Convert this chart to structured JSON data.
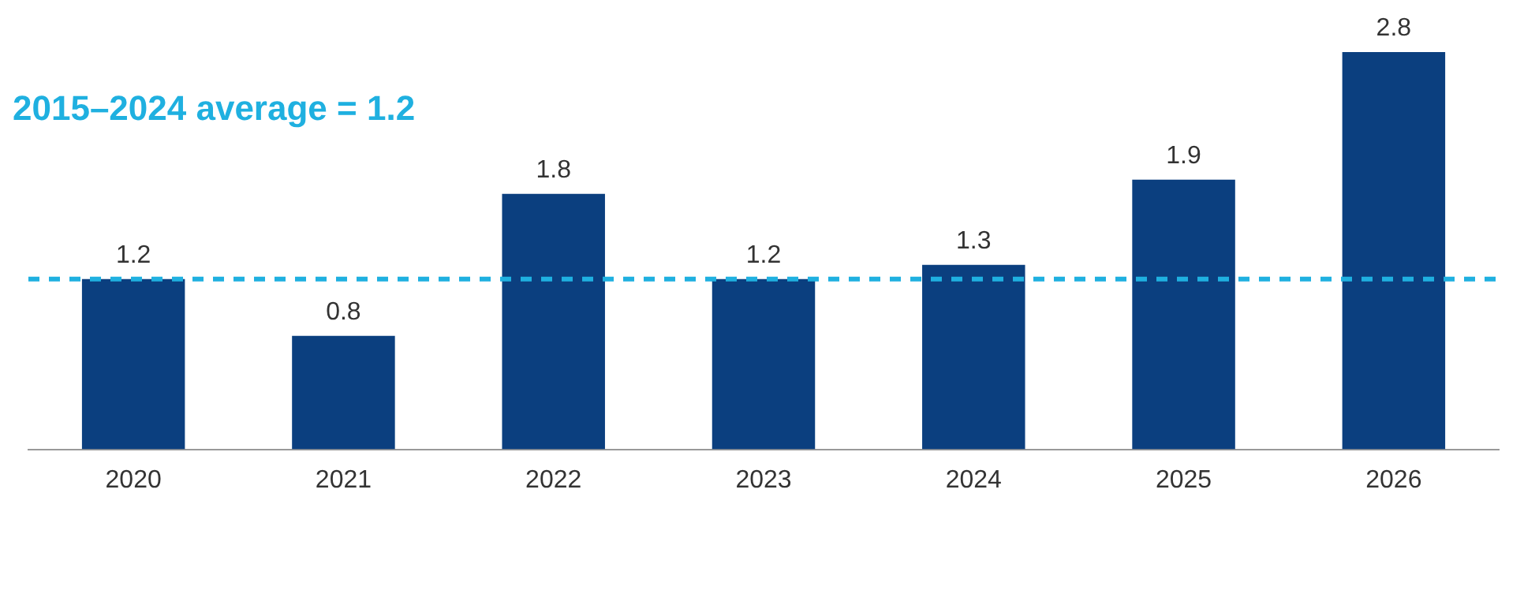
{
  "chart_data": {
    "type": "bar",
    "categories": [
      "2020",
      "2021",
      "2022",
      "2023",
      "2024",
      "2025",
      "2026"
    ],
    "values": [
      1.2,
      0.8,
      1.8,
      1.2,
      1.3,
      1.9,
      2.8
    ],
    "color": "#0b3f7f",
    "data_labels": true,
    "grid": false,
    "legend": false,
    "ref_lines": [
      {
        "axis": "y",
        "value": 1.2,
        "label": "2015–2024 average = 1.2",
        "color": "#1fb0e0",
        "line_style": "dashed"
      }
    ]
  }
}
